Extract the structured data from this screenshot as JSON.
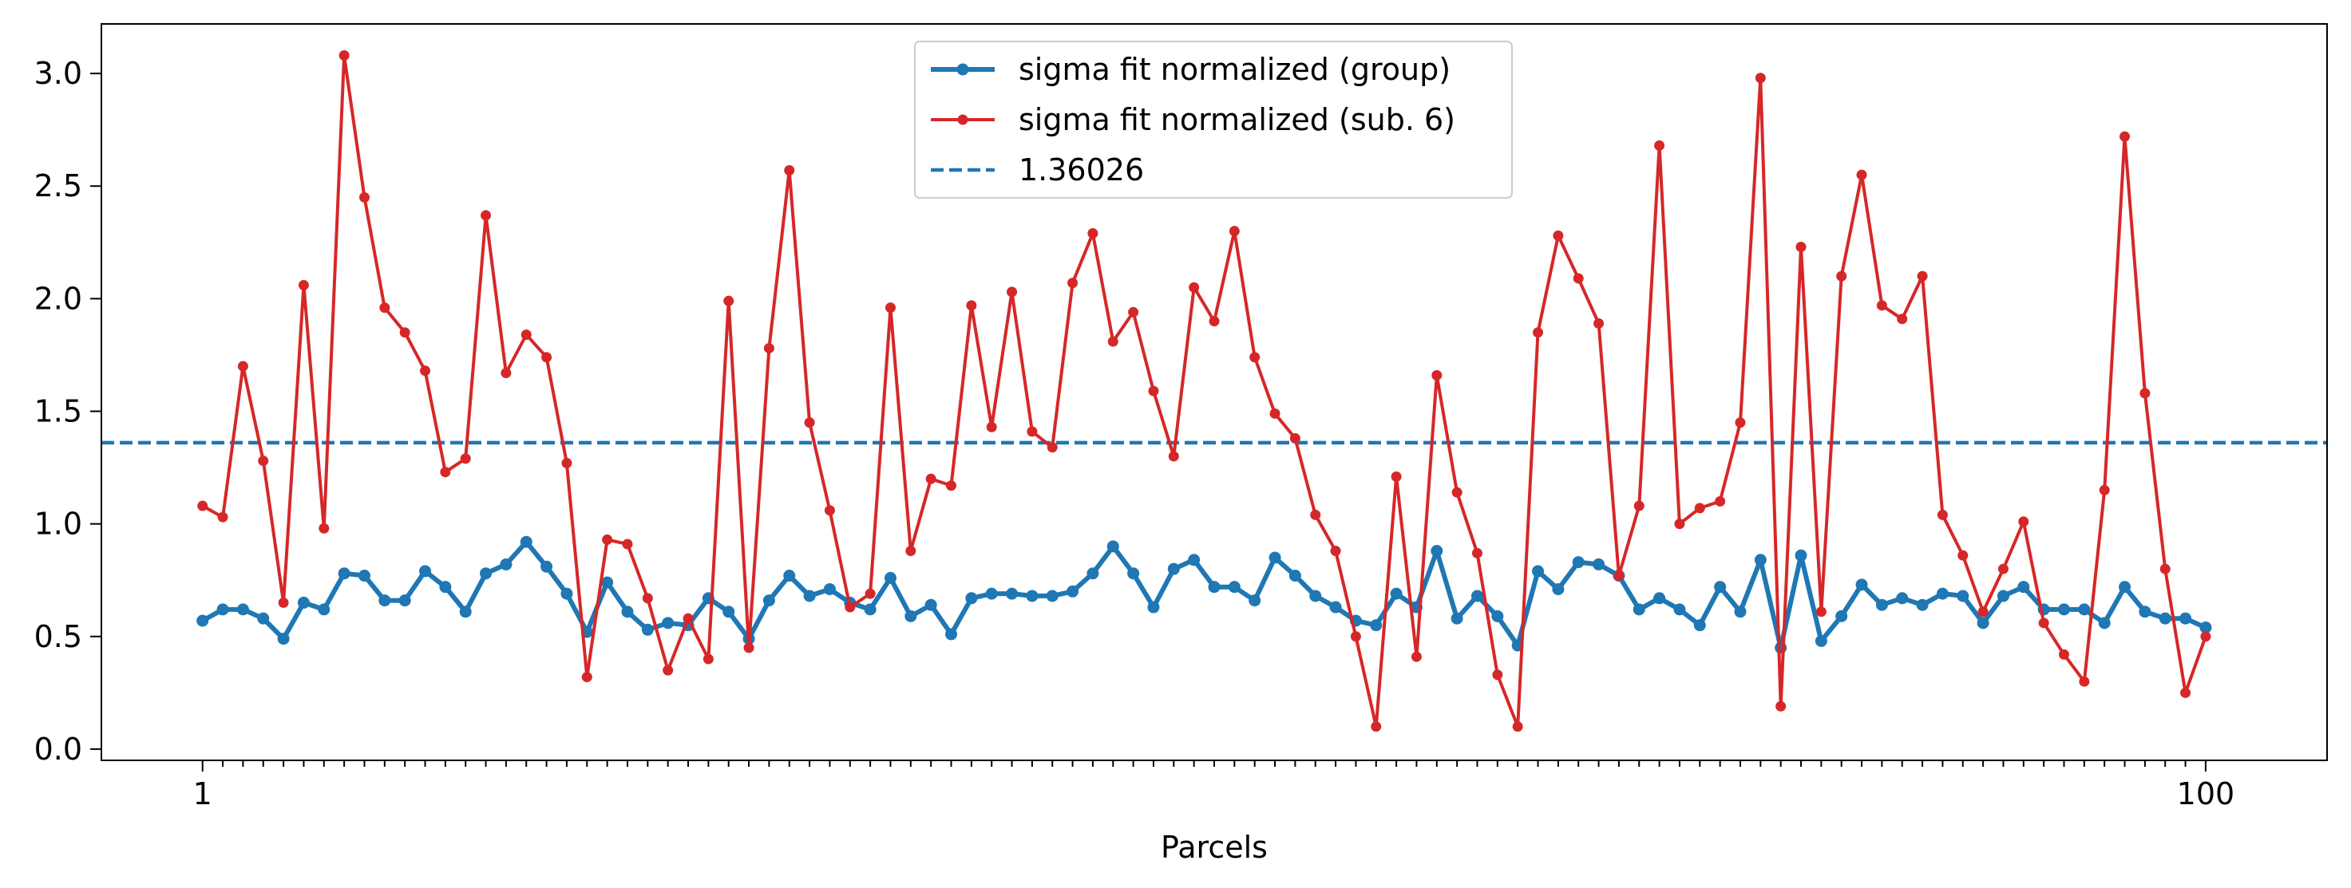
{
  "chart_data": {
    "type": "line",
    "xlabel": "Parcels",
    "ylabel": "",
    "title": "",
    "xlim": [
      -4,
      106
    ],
    "ylim": [
      -0.05,
      3.22
    ],
    "x_tick_labels": [
      {
        "x": 1,
        "label": "1"
      },
      {
        "x": 100,
        "label": "100"
      }
    ],
    "y_ticks": [
      0.0,
      0.5,
      1.0,
      1.5,
      2.0,
      2.5,
      3.0
    ],
    "y_tick_labels": [
      "0.0",
      "0.5",
      "1.0",
      "1.5",
      "2.0",
      "2.5",
      "3.0"
    ],
    "grid": false,
    "legend_position": "upper center",
    "series": [
      {
        "name": "sigma fit normalized (group)",
        "color": "#1f77b4",
        "values": [
          0.57,
          0.62,
          0.62,
          0.58,
          0.49,
          0.65,
          0.62,
          0.78,
          0.77,
          0.66,
          0.66,
          0.79,
          0.72,
          0.61,
          0.78,
          0.82,
          0.92,
          0.81,
          0.69,
          0.52,
          0.74,
          0.61,
          0.53,
          0.56,
          0.55,
          0.67,
          0.61,
          0.49,
          0.66,
          0.77,
          0.68,
          0.71,
          0.65,
          0.62,
          0.76,
          0.59,
          0.64,
          0.51,
          0.67,
          0.69,
          0.69,
          0.68,
          0.68,
          0.7,
          0.78,
          0.9,
          0.78,
          0.63,
          0.8,
          0.84,
          0.72,
          0.72,
          0.66,
          0.85,
          0.77,
          0.68,
          0.63,
          0.57,
          0.55,
          0.69,
          0.63,
          0.88,
          0.58,
          0.68,
          0.59,
          0.46,
          0.79,
          0.71,
          0.83,
          0.82,
          0.77,
          0.62,
          0.67,
          0.62,
          0.55,
          0.72,
          0.61,
          0.84,
          0.45,
          0.86,
          0.48,
          0.59,
          0.73,
          0.64,
          0.67,
          0.64,
          0.69,
          0.68,
          0.56,
          0.68,
          0.72,
          0.62,
          0.62,
          0.62,
          0.56,
          0.72,
          0.61,
          0.58,
          0.58,
          0.54
        ]
      },
      {
        "name": "sigma fit normalized (sub. 6)",
        "color": "#d62728",
        "values": [
          1.08,
          1.03,
          1.7,
          1.28,
          0.65,
          2.06,
          0.98,
          3.08,
          2.45,
          1.96,
          1.85,
          1.68,
          1.23,
          1.29,
          2.37,
          1.67,
          1.84,
          1.74,
          1.27,
          0.32,
          0.93,
          0.91,
          0.67,
          0.35,
          0.58,
          0.4,
          1.99,
          0.45,
          1.78,
          2.57,
          1.45,
          1.06,
          0.63,
          0.69,
          1.96,
          0.88,
          1.2,
          1.17,
          1.97,
          1.43,
          2.03,
          1.41,
          1.34,
          2.07,
          2.29,
          1.81,
          1.94,
          1.59,
          1.3,
          2.05,
          1.9,
          2.3,
          1.74,
          1.49,
          1.38,
          1.04,
          0.88,
          0.5,
          0.1,
          1.21,
          0.41,
          1.66,
          1.14,
          0.87,
          0.33,
          0.1,
          1.85,
          2.28,
          2.09,
          1.89,
          0.77,
          1.08,
          2.68,
          1.0,
          1.07,
          1.1,
          1.45,
          2.98,
          0.19,
          2.23,
          0.61,
          2.1,
          2.55,
          1.97,
          1.91,
          2.1,
          1.04,
          0.86,
          0.61,
          0.8,
          1.01,
          0.56,
          0.42,
          0.3,
          1.15,
          2.72,
          1.58,
          0.8,
          0.25,
          0.5
        ]
      }
    ],
    "reference_line": {
      "label": "1.36026",
      "y": 1.36026,
      "color": "#1f77b4",
      "style": "dashed"
    }
  }
}
